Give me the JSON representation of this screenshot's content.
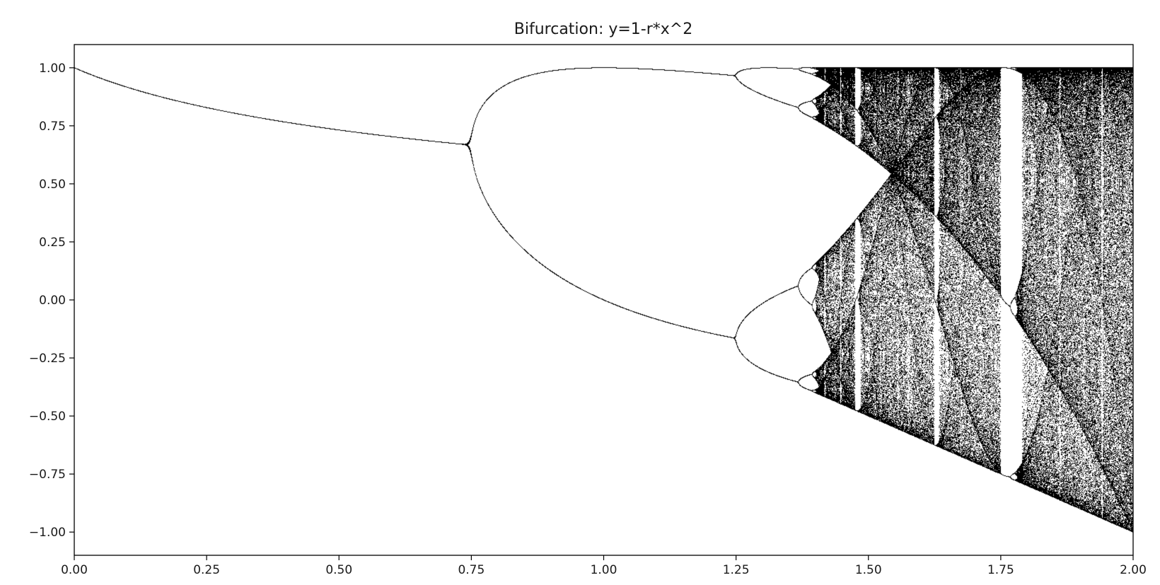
{
  "chart_data": {
    "type": "scatter",
    "title": "Bifurcation: y=1-r*x^2",
    "xlabel": "",
    "ylabel": "",
    "xlim": [
      0.0,
      2.0
    ],
    "ylim": [
      -1.1,
      1.1
    ],
    "x_ticks": [
      0.0,
      0.25,
      0.5,
      0.75,
      1.0,
      1.25,
      1.5,
      1.75,
      2.0
    ],
    "x_tick_labels": [
      "0.00",
      "0.25",
      "0.50",
      "0.75",
      "1.00",
      "1.25",
      "1.50",
      "1.75",
      "2.00"
    ],
    "y_ticks": [
      1.0,
      0.75,
      0.5,
      0.25,
      0.0,
      -0.25,
      -0.5,
      -0.75,
      -1.0
    ],
    "y_tick_labels": [
      "1.00",
      "0.75",
      "0.50",
      "0.25",
      "0.00",
      "−0.25",
      "−0.50",
      "−0.75",
      "−1.00"
    ],
    "map": "y = 1 - r*x^2",
    "r_range": [
      0.0,
      2.0
    ],
    "grid": false,
    "marker_color": "#000000",
    "background_color": "#ffffff"
  }
}
